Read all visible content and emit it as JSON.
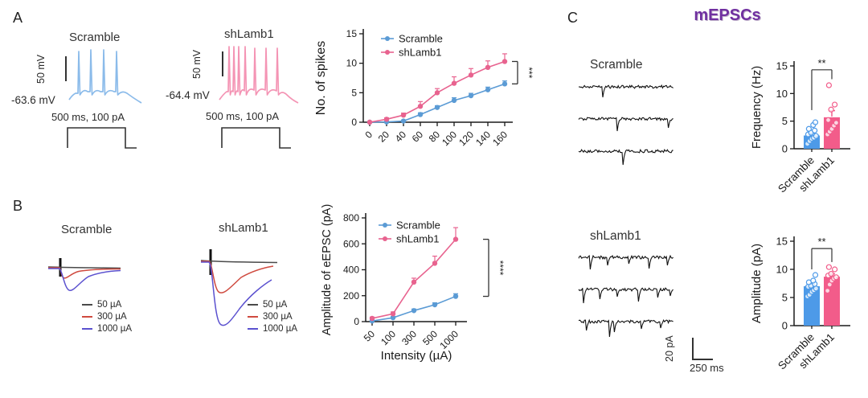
{
  "panelA": {
    "label": "A",
    "scramble": {
      "title": "Scramble",
      "scale_v": "50 mV",
      "rmp": "-63.6 mV",
      "stim": "500 ms, 100 pA"
    },
    "shlamb1": {
      "title": "shLamb1",
      "scale_v": "50 mV",
      "rmp": "-64.4 mV",
      "stim": "500 ms, 100 pA"
    }
  },
  "panelB": {
    "label": "B",
    "scramble_title": "Scramble",
    "shlamb1_title": "shLamb1",
    "legend": [
      {
        "label": "50 µA",
        "color": "#4a4a4a"
      },
      {
        "label": "300 µA",
        "color": "#cf4a3f"
      },
      {
        "label": "1000 µA",
        "color": "#5b51cf"
      }
    ]
  },
  "panelC": {
    "label": "C",
    "title": "mEPSCs",
    "title_color": "#7030a0",
    "scramble_title": "Scramble",
    "shlamb1_title": "shLamb1",
    "scale_v": "20 pA",
    "scale_h": "250 ms"
  },
  "chart_data": [
    {
      "id": "spikes",
      "type": "line",
      "title": "",
      "xlabel": "",
      "ylabel": "No. of spikes",
      "ylim": [
        0,
        15
      ],
      "yticks": [
        0,
        5,
        10,
        15
      ],
      "grid": false,
      "categories": [
        "0",
        "20",
        "40",
        "60",
        "80",
        "100",
        "120",
        "140",
        "160"
      ],
      "series": [
        {
          "name": "Scramble",
          "color": "#5b9bd5",
          "values": [
            0,
            0.05,
            0.2,
            1.3,
            2.5,
            3.7,
            4.5,
            5.5,
            6.5
          ],
          "errors": [
            0,
            0.05,
            0.15,
            0.3,
            0.3,
            0.45,
            0.4,
            0.45,
            0.5
          ]
        },
        {
          "name": "shLamb1",
          "color": "#e8638f",
          "values": [
            0,
            0.5,
            1.2,
            2.7,
            5.0,
            6.6,
            8.0,
            9.3,
            10.3
          ],
          "errors": [
            0,
            0.25,
            0.35,
            0.8,
            0.7,
            1.1,
            1.1,
            1.1,
            1.3
          ]
        }
      ],
      "significance": "***",
      "legend_position": "top-left"
    },
    {
      "id": "eepsc",
      "type": "line",
      "title": "",
      "xlabel": "Intensity  (µA)",
      "ylabel": "Amplitude of eEPSC (pA)",
      "ylim": [
        0,
        800
      ],
      "yticks": [
        0,
        200,
        400,
        600,
        800
      ],
      "grid": false,
      "categories": [
        "50",
        "100",
        "300",
        "500",
        "1000"
      ],
      "series": [
        {
          "name": "Scramble",
          "color": "#5b9bd5",
          "values": [
            5,
            30,
            85,
            130,
            195
          ],
          "errors": [
            10,
            10,
            12,
            15,
            20
          ]
        },
        {
          "name": "shLamb1",
          "color": "#e8638f",
          "values": [
            25,
            60,
            305,
            450,
            635
          ],
          "errors": [
            10,
            15,
            30,
            55,
            90
          ]
        }
      ],
      "significance": "****",
      "legend_position": "top-left"
    },
    {
      "id": "freq",
      "type": "bar",
      "title": "",
      "xlabel": "",
      "ylabel": "Frequency (Hz)",
      "ylim": [
        0,
        15
      ],
      "yticks": [
        0,
        5,
        10,
        15
      ],
      "grid": false,
      "categories": [
        "Scramble",
        "shLamb1"
      ],
      "values": [
        2.4,
        5.7
      ],
      "errors": [
        0.4,
        1.2
      ],
      "colors": [
        "#4d9ae8",
        "#f25c8a"
      ],
      "points": [
        [
          0.9,
          1.4,
          1.8,
          2.0,
          2.3,
          2.6,
          2.9,
          3.3,
          3.6,
          4.3,
          4.8
        ],
        [
          2.6,
          3.1,
          3.6,
          4.2,
          4.7,
          5.2,
          7.1,
          8.0,
          11.5
        ]
      ],
      "significance": "**"
    },
    {
      "id": "amp",
      "type": "bar",
      "title": "",
      "xlabel": "",
      "ylabel": "Amplitude (pA)",
      "ylim": [
        0,
        15
      ],
      "yticks": [
        0,
        5,
        10,
        15
      ],
      "grid": false,
      "categories": [
        "Scramble",
        "shLamb1"
      ],
      "values": [
        7.0,
        8.7
      ],
      "errors": [
        0.35,
        0.5
      ],
      "colors": [
        "#4d9ae8",
        "#f25c8a"
      ],
      "points": [
        [
          5.2,
          5.5,
          6.0,
          6.3,
          6.6,
          6.9,
          7.1,
          7.4,
          7.7,
          8.0,
          9.0
        ],
        [
          6.2,
          7.3,
          8.0,
          8.4,
          8.6,
          8.9,
          9.2,
          10.0,
          10.4
        ]
      ],
      "significance": "**"
    }
  ]
}
